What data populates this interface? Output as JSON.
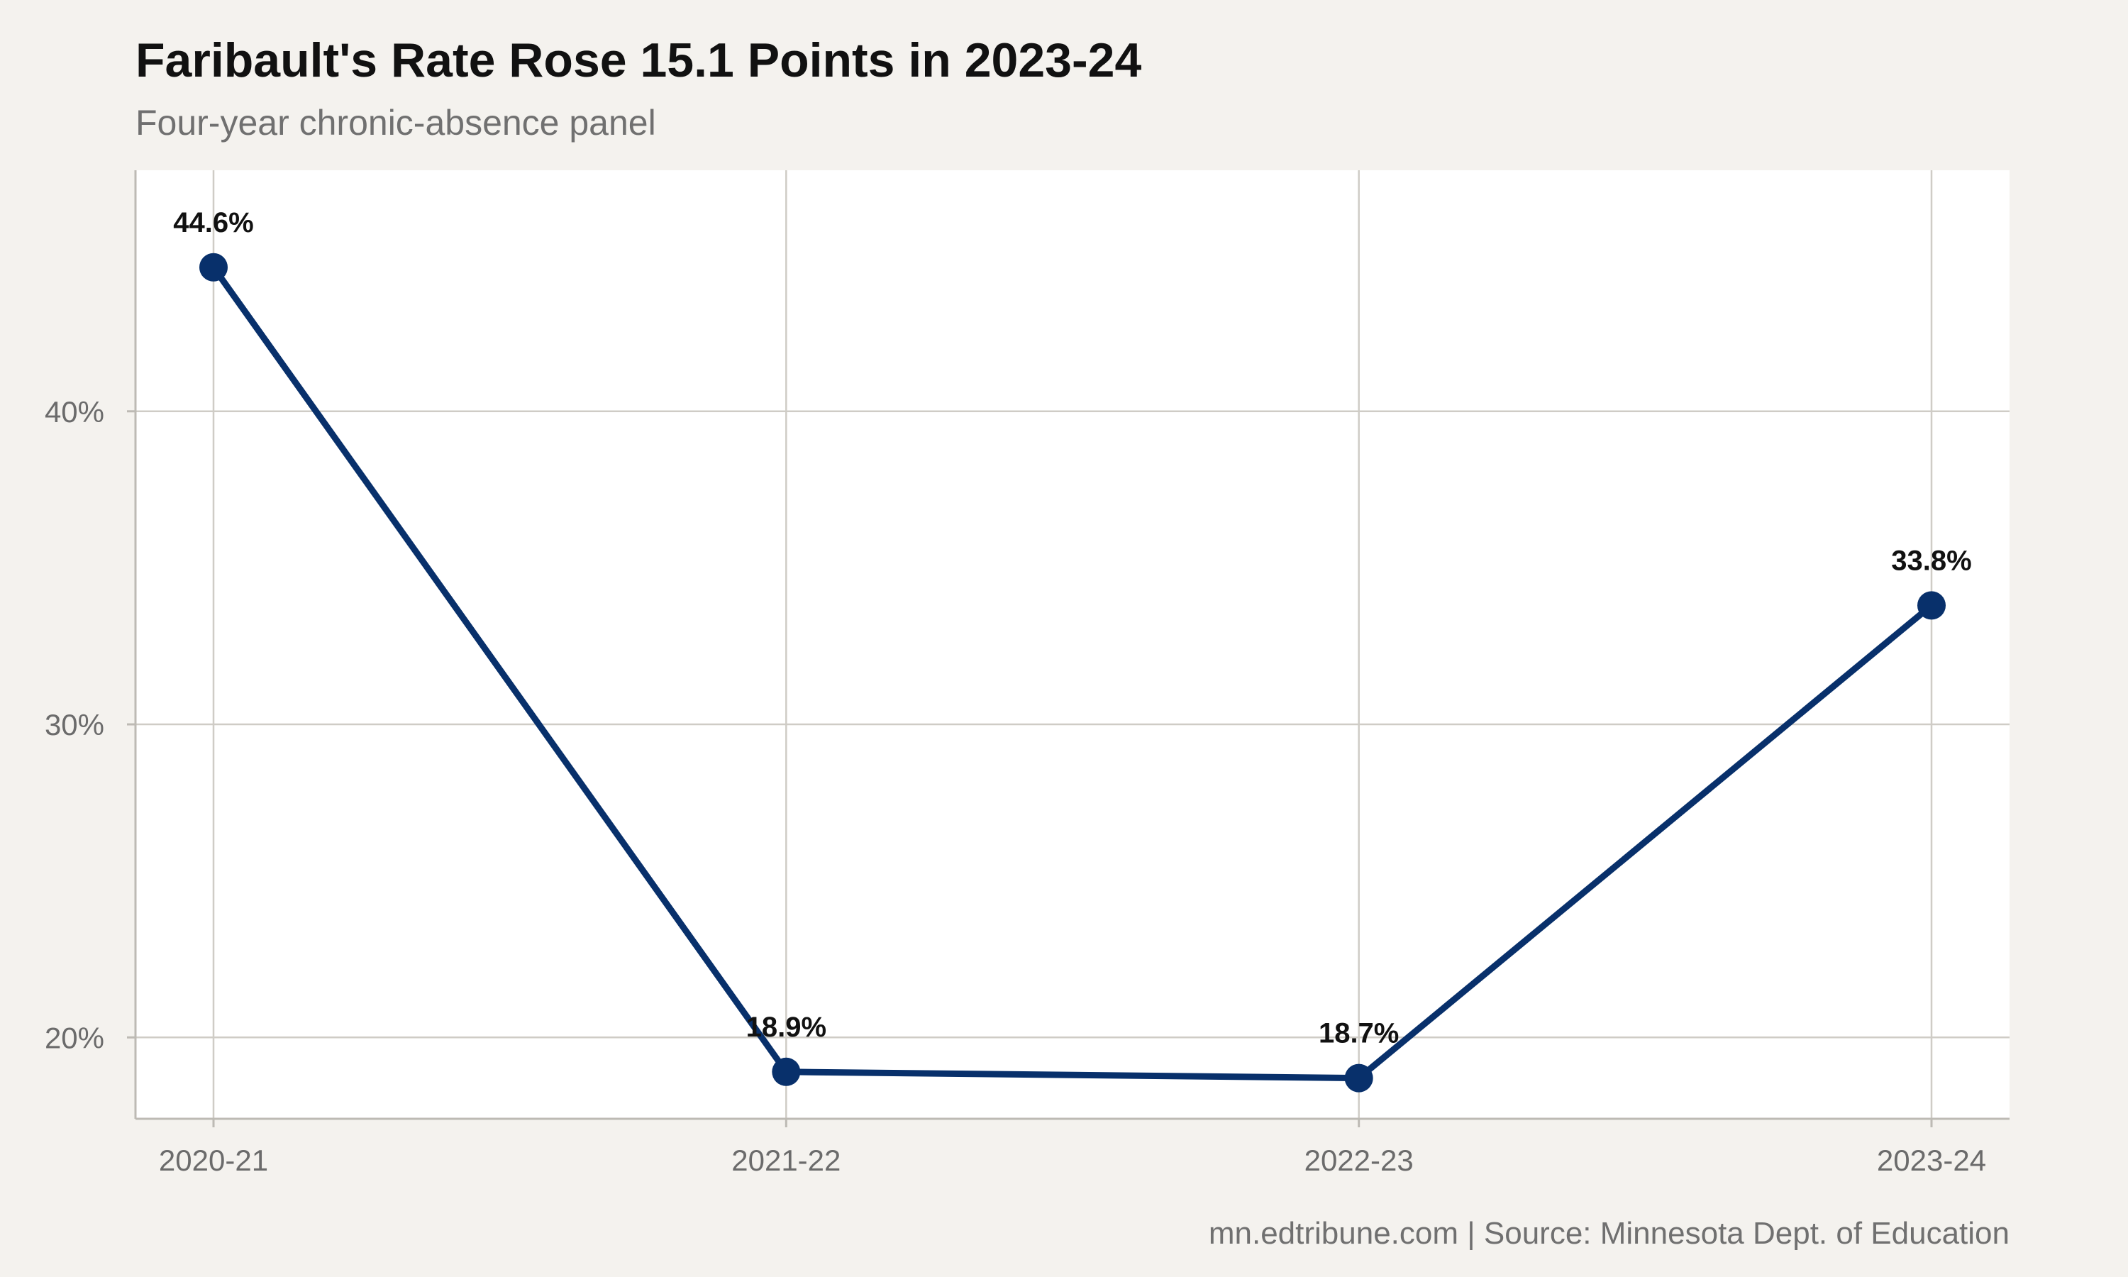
{
  "chart_data": {
    "type": "line",
    "title": "Faribault's Rate Rose 15.1 Points in 2023-24",
    "subtitle": "Four-year chronic-absence panel",
    "caption": "mn.edtribune.com | Source: Minnesota Dept. of Education",
    "categories": [
      "2020-21",
      "2021-22",
      "2022-23",
      "2023-24"
    ],
    "series": [
      {
        "values": [
          44.6,
          18.9,
          18.7,
          33.8
        ],
        "labels": [
          "44.6%",
          "18.9%",
          "18.7%",
          "33.8%"
        ],
        "color": "#08306b"
      }
    ],
    "y_ticks": [
      20,
      30,
      40
    ],
    "y_tick_labels": [
      "20%",
      "30%",
      "40%"
    ],
    "ylim": [
      17.4,
      47.7
    ],
    "xlabel": "",
    "ylabel": "",
    "grid": true,
    "legend": "none",
    "colors": {
      "background": "#f4f2ee",
      "panel": "#ffffff",
      "grid": "#cfccc6",
      "line": "#08306b"
    }
  }
}
